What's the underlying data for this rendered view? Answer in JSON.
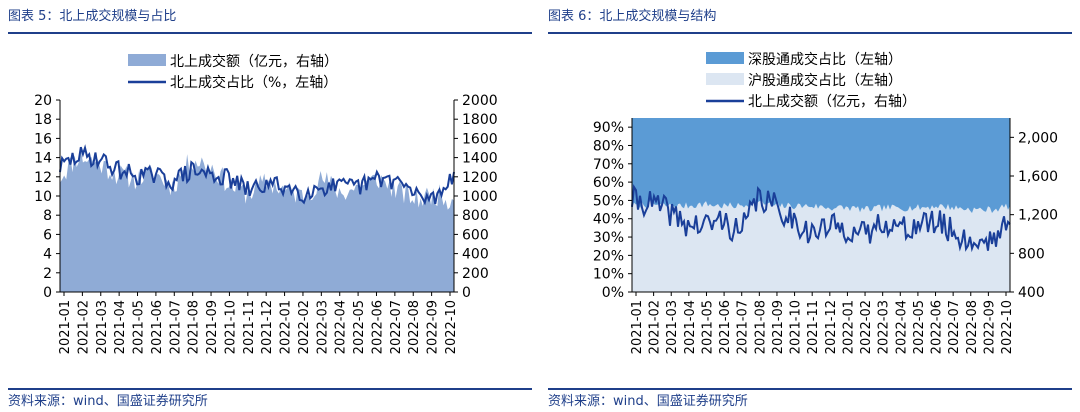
{
  "left": {
    "title": "图表 5：北上成交规模与占比",
    "source": "资料来源：wind、国盛证券研究所",
    "legend": [
      "北上成交额（亿元，右轴）",
      "北上成交占比（%，左轴）"
    ]
  },
  "right": {
    "title": "图表 6：北上成交规模与结构",
    "source": "资料来源：wind、国盛证券研究所",
    "legend": [
      "深股通成交占比（左轴）",
      "沪股通成交占比（左轴）",
      "北上成交额（亿元，右轴）"
    ]
  },
  "chart_data": [
    {
      "type": "area",
      "title": "北上成交规模与占比",
      "x": [
        "2021-01",
        "2021-02",
        "2021-03",
        "2021-04",
        "2021-05",
        "2021-06",
        "2021-07",
        "2021-08",
        "2021-09",
        "2021-10",
        "2021-11",
        "2021-12",
        "2022-01",
        "2022-02",
        "2022-03",
        "2022-04",
        "2022-05",
        "2022-06",
        "2022-07",
        "2022-08",
        "2022-09",
        "2022-10"
      ],
      "xtick_labels": [
        "2021-01",
        "2021-02",
        "2021-03",
        "2021-04",
        "2021-05",
        "2021-06",
        "2021-07",
        "2021-08",
        "2021-09",
        "2021-10",
        "2021-11",
        "2021-12",
        "2022-01",
        "2022-02",
        "2022-03",
        "2022-04",
        "2022-05",
        "2022-06",
        "2022-07",
        "2022-08",
        "2022-09",
        "2022-10"
      ],
      "y_left": {
        "ylim": [
          0,
          20
        ],
        "ticks": [
          "0",
          "2",
          "4",
          "6",
          "8",
          "10",
          "12",
          "14",
          "16",
          "18",
          "20"
        ]
      },
      "y_right": {
        "ylim": [
          0,
          2000
        ],
        "ticks": [
          "0",
          "200",
          "400",
          "600",
          "800",
          "1000",
          "1200",
          "1400",
          "1600",
          "1800",
          "2000"
        ]
      },
      "series": [
        {
          "name": "北上成交额（亿元，右轴）",
          "axis": "right",
          "kind": "area",
          "color": "#8fabd6",
          "values": [
            1200,
            1420,
            1350,
            1230,
            1180,
            1240,
            1100,
            1380,
            1320,
            1120,
            1020,
            1150,
            1060,
            1000,
            1180,
            1030,
            1100,
            1180,
            1050,
            960,
            1020,
            950
          ]
        },
        {
          "name": "北上成交占比（%，左轴）",
          "axis": "left",
          "kind": "line",
          "color": "#1a3f99",
          "values": [
            13.0,
            14.2,
            14.0,
            12.8,
            12.2,
            12.1,
            11.6,
            12.6,
            12.3,
            11.8,
            10.6,
            11.2,
            11.0,
            10.3,
            11.0,
            10.9,
            11.0,
            11.8,
            11.6,
            10.0,
            9.8,
            12.5
          ]
        }
      ]
    },
    {
      "type": "area",
      "title": "北上成交规模与结构",
      "x": [
        "2021-01",
        "2021-02",
        "2021-03",
        "2021-04",
        "2021-05",
        "2021-06",
        "2021-07",
        "2021-08",
        "2021-09",
        "2021-10",
        "2021-11",
        "2021-12",
        "2022-01",
        "2022-02",
        "2022-03",
        "2022-04",
        "2022-05",
        "2022-06",
        "2022-07",
        "2022-08",
        "2022-09",
        "2022-10"
      ],
      "xtick_labels": [
        "2021-01",
        "2021-02",
        "2021-03",
        "2021-04",
        "2021-05",
        "2021-06",
        "2021-07",
        "2021-08",
        "2021-09",
        "2021-10",
        "2021-11",
        "2021-12",
        "2022-01",
        "2022-02",
        "2022-03",
        "2022-04",
        "2022-05",
        "2022-06",
        "2022-07",
        "2022-08",
        "2022-09",
        "2022-10"
      ],
      "y_left": {
        "ylim": [
          0,
          0.95
        ],
        "ticks": [
          "0%",
          "10%",
          "20%",
          "30%",
          "40%",
          "50%",
          "60%",
          "70%",
          "80%",
          "90%"
        ]
      },
      "y_right": {
        "ylim": [
          400,
          2200
        ],
        "ticks": [
          "400",
          "800",
          "1,200",
          "1,600",
          "2,000"
        ]
      },
      "series": [
        {
          "name": "深股通成交占比（左轴）",
          "axis": "left",
          "kind": "area",
          "color": "#5b9bd5",
          "note_stack": "top band to 100%",
          "values": [
            0.53,
            0.52,
            0.53,
            0.53,
            0.52,
            0.53,
            0.53,
            0.51,
            0.53,
            0.53,
            0.53,
            0.54,
            0.54,
            0.55,
            0.54,
            0.54,
            0.54,
            0.53,
            0.54,
            0.55,
            0.55,
            0.53
          ]
        },
        {
          "name": "沪股通成交占比（左轴）",
          "axis": "left",
          "kind": "area",
          "color": "#dce6f2",
          "values": [
            0.47,
            0.48,
            0.47,
            0.47,
            0.48,
            0.47,
            0.47,
            0.49,
            0.47,
            0.47,
            0.47,
            0.46,
            0.46,
            0.45,
            0.46,
            0.46,
            0.46,
            0.47,
            0.46,
            0.45,
            0.45,
            0.47
          ]
        },
        {
          "name": "北上成交额（亿元，右轴）",
          "axis": "right",
          "kind": "line",
          "color": "#1a3f99",
          "values": [
            1350,
            1320,
            1240,
            1100,
            1080,
            1150,
            1000,
            1380,
            1280,
            1150,
            1000,
            1080,
            1050,
            980,
            1150,
            1040,
            1100,
            1120,
            1000,
            900,
            960,
            1100
          ]
        }
      ]
    }
  ]
}
